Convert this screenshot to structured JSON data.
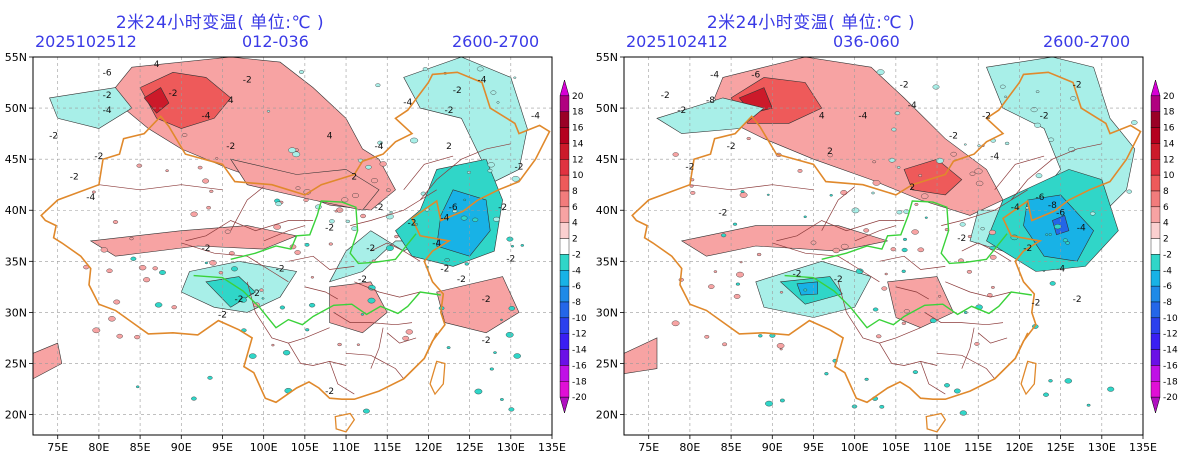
{
  "panels": [
    {
      "title": "2米24小时变温( 单位:℃ )",
      "init_time": "2025102512",
      "forecast_range": "012-036",
      "level": "2600-2700",
      "map_labels": [
        "-6",
        "-2",
        "-4",
        "-2",
        "-2",
        "-4",
        "-2",
        "4",
        "4",
        "4",
        "2",
        "-2",
        "-4",
        "-2",
        "-4",
        "-4",
        "-2",
        "-4",
        "-2",
        "2",
        "-2",
        "-2",
        "-6",
        "-4",
        "-2",
        "-4",
        "-2",
        "-2",
        "-2",
        "-2",
        "-2",
        "-2",
        "-2",
        "-2",
        "-2",
        "-4",
        "-2",
        "-2",
        "-2",
        "-2",
        "-2",
        "-2",
        "-2"
      ]
    },
    {
      "title": "2米24小时变温( 单位:℃ )",
      "init_time": "2025102412",
      "forecast_range": "036-060",
      "level": "2600-2700",
      "map_labels": [
        "-4",
        "-6",
        "-2",
        "-8",
        "-2",
        "-2",
        "-4",
        "-2",
        "-4",
        "-2",
        "4",
        "2",
        "-2",
        "-2",
        "-4",
        "2",
        "-2",
        "-4",
        "-6",
        "-8",
        "-6",
        "-4",
        "-2",
        "-4",
        "-2",
        "-2",
        "-2",
        "-2",
        "-2",
        "-2",
        "-2"
      ]
    }
  ],
  "axes": {
    "lon": [
      "75E",
      "80E",
      "85E",
      "90E",
      "95E",
      "100E",
      "105E",
      "110E",
      "115E",
      "120E",
      "125E",
      "130E",
      "135E"
    ],
    "lat": [
      "55N",
      "50N",
      "45N",
      "40N",
      "35N",
      "30N",
      "25N",
      "20N"
    ]
  },
  "colorbar": {
    "labels": [
      "20",
      "18",
      "16",
      "14",
      "12",
      "10",
      "8",
      "6",
      "4",
      "2",
      "-2",
      "-4",
      "-6",
      "-8",
      "-10",
      "-12",
      "-14",
      "-16",
      "-18",
      "-20"
    ],
    "colors": [
      "#d600d6",
      "#b00080",
      "#9a0026",
      "#b5001f",
      "#cc1a2a",
      "#e03240",
      "#ee5a5a",
      "#f27c7c",
      "#f7a3a3",
      "#fbd0d0",
      "#ffffff",
      "#30d6c8",
      "#18b2e6",
      "#1e8ae8",
      "#2466e8",
      "#2c40ee",
      "#3a1ef2",
      "#6a10e6",
      "#c010e6",
      "#e010d6",
      "#b010c0"
    ]
  },
  "legend_colors": {
    "land_border": "#e0892c",
    "river_green": "#3ad23a",
    "province": "#8b3a3a",
    "grid": "#9a9a9a"
  }
}
